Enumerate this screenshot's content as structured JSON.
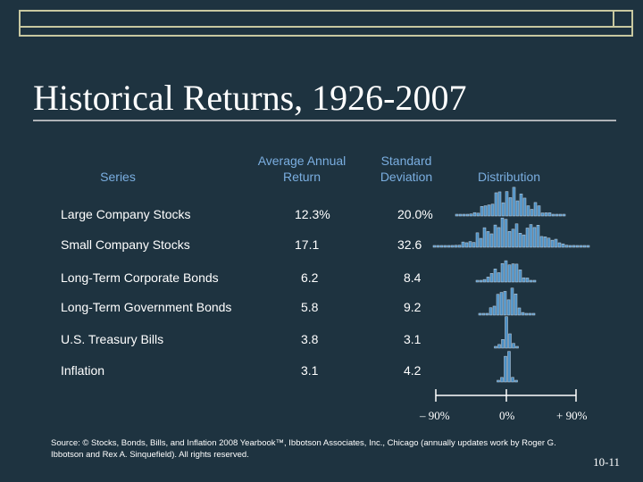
{
  "header": {
    "title": "Historical Returns, 1926-2007"
  },
  "table": {
    "columns": [
      "Series",
      "Average Annual Return",
      "Standard Deviation",
      "Distribution"
    ],
    "rows": [
      [
        "Large Company Stocks",
        "12.3%",
        "20.0%"
      ],
      [
        "Small Company Stocks",
        17.1,
        32.6
      ],
      [
        "Long-Term Corporate Bonds",
        6.2,
        8.4
      ],
      [
        "Long-Term Government Bonds",
        5.8,
        9.2
      ],
      [
        "U.S. Treasury Bills",
        3.8,
        3.1
      ],
      [
        "Inflation",
        3.1,
        4.2
      ]
    ]
  },
  "axis": {
    "labels": [
      "– 90%",
      "0%",
      "+ 90%"
    ]
  },
  "footer": {
    "source": "Source: © Stocks, Bonds, Bills, and Inflation 2008 Yearbook™, Ibbotson Associates, Inc., Chicago (annually updates work by Roger G. Ibbotson and Rex A. Sinquefield). All rights reserved.",
    "page": "10-11"
  }
}
